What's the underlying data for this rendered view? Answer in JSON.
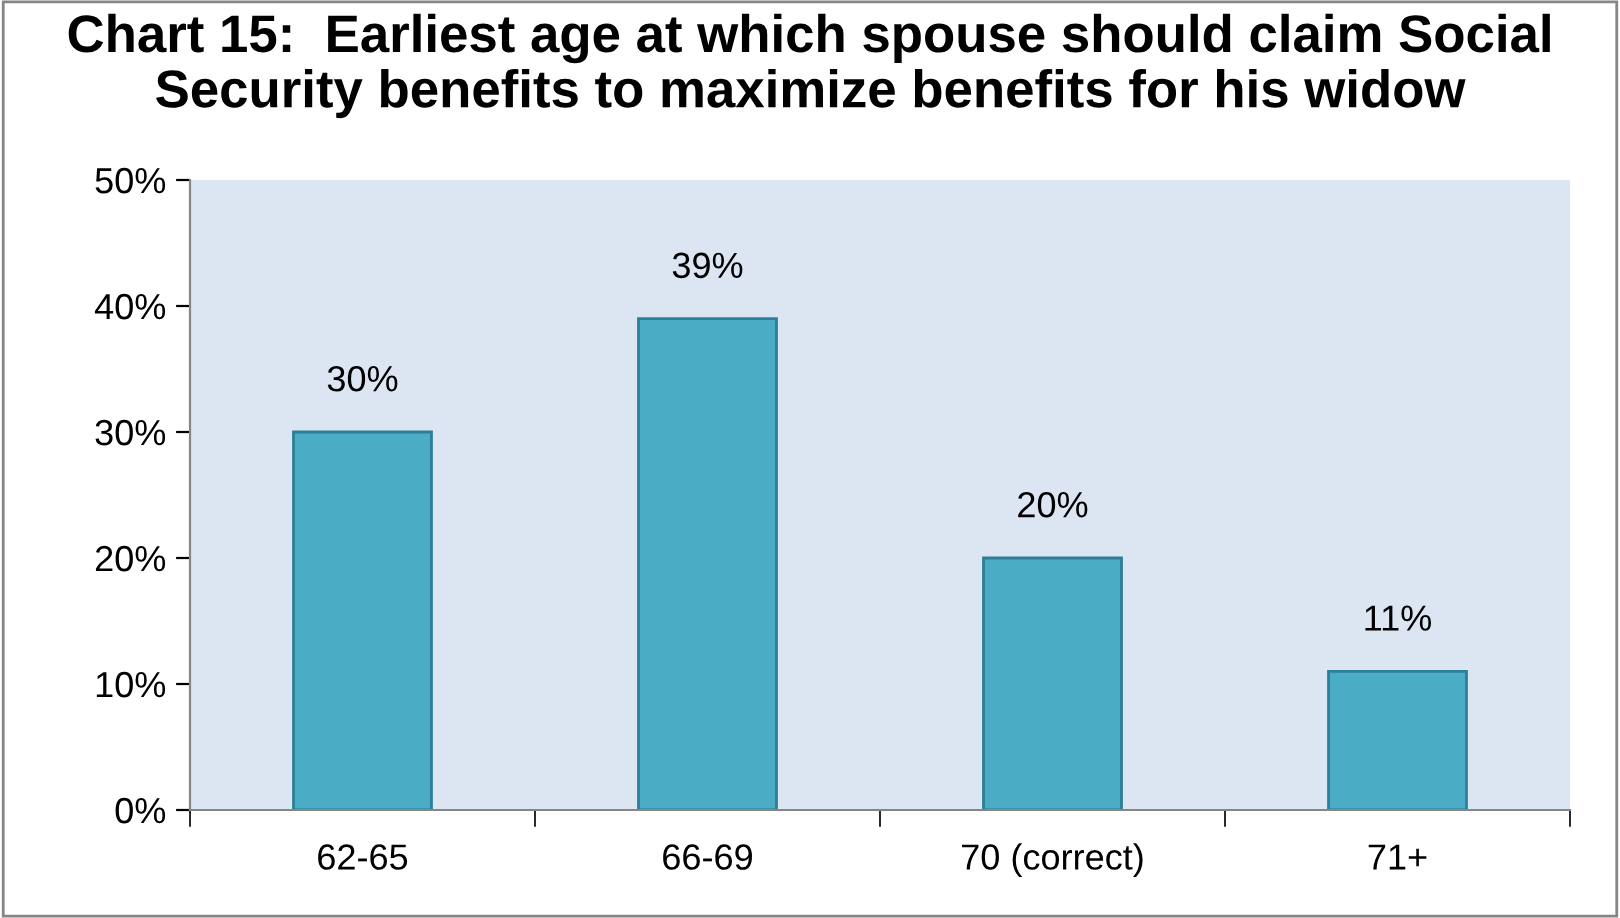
{
  "chart_data": {
    "type": "bar",
    "title": "Chart 15:  Earliest age at which spouse should claim Social Security benefits to maximize benefits for his widow",
    "categories": [
      "62-65",
      "66-69",
      "70 (correct)",
      "71+"
    ],
    "values": [
      30,
      39,
      20,
      11
    ],
    "value_labels": [
      "30%",
      "39%",
      "20%",
      "11%"
    ],
    "color": "#4bacc6",
    "ylim": [
      0,
      50
    ],
    "yticks": [
      {
        "value": 0,
        "label": "0%"
      },
      {
        "value": 10,
        "label": "10%"
      },
      {
        "value": 20,
        "label": "20%"
      },
      {
        "value": 30,
        "label": "30%"
      },
      {
        "value": 40,
        "label": "40%"
      },
      {
        "value": 50,
        "label": "50%"
      }
    ],
    "grid": false,
    "legend": false
  }
}
